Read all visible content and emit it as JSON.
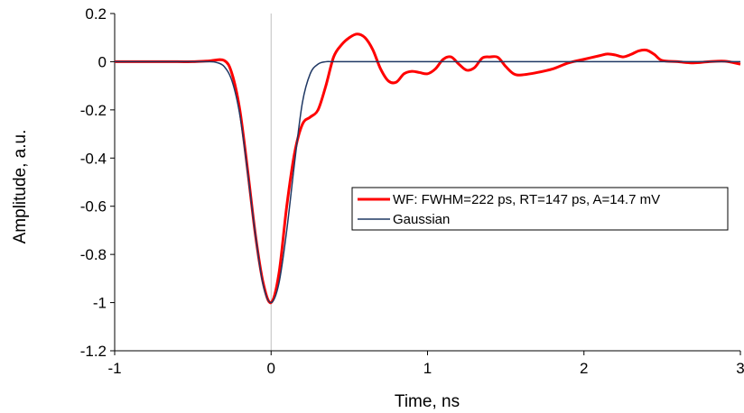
{
  "chart_data": {
    "type": "line",
    "title": "",
    "xlabel": "Time, ns",
    "ylabel": "Amplitude, a.u.",
    "xlim": [
      -1,
      3
    ],
    "ylim": [
      -1.2,
      0.2
    ],
    "x_ticks": [
      -1,
      0,
      1,
      2,
      3
    ],
    "x_tick_labels": [
      "-1",
      "0",
      "1",
      "2",
      "3"
    ],
    "y_ticks": [
      0.2,
      0,
      -0.2,
      -0.4,
      -0.6,
      -0.8,
      -1,
      -1.2
    ],
    "y_tick_labels": [
      "0.2",
      "0",
      "-0.2",
      "-0.4",
      "-0.6",
      "-0.8",
      "-1",
      "-1.2"
    ],
    "grid": false,
    "legend_position": "right",
    "series": [
      {
        "name": "WF: FWHM=222 ps, RT=147 ps, A=14.7 mV",
        "color": "#ff0000",
        "x": [
          -1,
          -0.8,
          -0.6,
          -0.5,
          -0.4,
          -0.3,
          -0.25,
          -0.2,
          -0.15,
          -0.1,
          -0.05,
          0,
          0.05,
          0.1,
          0.15,
          0.2,
          0.25,
          0.3,
          0.35,
          0.4,
          0.45,
          0.5,
          0.55,
          0.6,
          0.65,
          0.7,
          0.75,
          0.8,
          0.85,
          0.9,
          0.95,
          1.0,
          1.05,
          1.1,
          1.15,
          1.2,
          1.25,
          1.3,
          1.35,
          1.4,
          1.45,
          1.5,
          1.55,
          1.6,
          1.7,
          1.8,
          1.9,
          2.0,
          2.1,
          2.15,
          2.2,
          2.25,
          2.3,
          2.35,
          2.4,
          2.45,
          2.5,
          2.6,
          2.7,
          2.8,
          2.9,
          3.0
        ],
        "y": [
          0,
          0,
          0,
          0,
          0.003,
          0.005,
          -0.05,
          -0.2,
          -0.45,
          -0.72,
          -0.92,
          -1.0,
          -0.88,
          -0.6,
          -0.38,
          -0.26,
          -0.23,
          -0.2,
          -0.1,
          0.02,
          0.07,
          0.1,
          0.115,
          0.1,
          0.05,
          -0.03,
          -0.08,
          -0.085,
          -0.05,
          -0.04,
          -0.045,
          -0.05,
          -0.03,
          0.01,
          0.02,
          -0.01,
          -0.035,
          -0.025,
          0.015,
          0.02,
          0.018,
          -0.02,
          -0.05,
          -0.055,
          -0.045,
          -0.03,
          -0.005,
          0.01,
          0.025,
          0.032,
          0.028,
          0.02,
          0.03,
          0.045,
          0.048,
          0.03,
          0.005,
          0.0,
          -0.005,
          0.0,
          0.002,
          -0.01
        ]
      },
      {
        "name": "Gaussian",
        "color": "#1f3864",
        "x": [
          -1,
          -0.6,
          -0.4,
          -0.35,
          -0.3,
          -0.25,
          -0.2,
          -0.15,
          -0.1,
          -0.05,
          0,
          0.05,
          0.1,
          0.15,
          0.2,
          0.25,
          0.3,
          0.35,
          0.4,
          0.6,
          1.0,
          2.0,
          3.0
        ],
        "y": [
          0,
          0,
          0,
          -0.003,
          -0.02,
          -0.08,
          -0.22,
          -0.46,
          -0.72,
          -0.93,
          -1.0,
          -0.92,
          -0.7,
          -0.42,
          -0.17,
          -0.05,
          -0.01,
          0,
          0,
          0,
          0,
          0,
          0
        ]
      }
    ]
  }
}
